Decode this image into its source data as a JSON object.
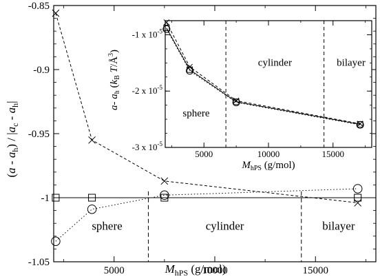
{
  "chart_data": [
    {
      "type": "line",
      "panel": "main",
      "xlabel": {
        "base": "M",
        "sub": "hPS",
        "unit": " (g/mol)"
      },
      "ylabel": "(a - a_h) / |a_c - a_h|",
      "xlim": [
        2000,
        18000
      ],
      "ylim": [
        -1.05,
        -0.85
      ],
      "xticks": [
        5000,
        10000,
        15000
      ],
      "xtick_labels": [
        "5000",
        "10000",
        "15000"
      ],
      "yticks": [
        -1.05,
        -1.0,
        -0.95,
        -0.9,
        -0.85
      ],
      "ytick_labels": [
        "-1.05",
        "-1",
        "-0.95",
        "-0.9",
        "-0.85"
      ],
      "grid": false,
      "reference_line_y": -1.0,
      "phase_boundaries_x": [
        6700,
        14300
      ],
      "region_labels": [
        "sphere",
        "cylinder",
        "bilayer"
      ],
      "series": [
        {
          "marker": "x",
          "line": "dashed",
          "x": [
            2100,
            3900,
            7500,
            17100
          ],
          "y": [
            -0.856,
            -0.955,
            -0.987,
            -1.004
          ]
        },
        {
          "marker": "square",
          "line": "solid",
          "x": [
            2100,
            3900,
            7500,
            17100
          ],
          "y": [
            -1.0,
            -1.0,
            -1.0,
            -1.0
          ]
        },
        {
          "marker": "circle",
          "line": "dotted",
          "x": [
            2100,
            3900,
            7500,
            17100
          ],
          "y": [
            -1.034,
            -1.009,
            -0.998,
            -0.993
          ]
        }
      ]
    },
    {
      "type": "line",
      "panel": "inset",
      "xlabel": {
        "base": "M",
        "sub": "hPS",
        "unit": " (g/mol)"
      },
      "ylabel": "a- a_h (k_B T/Å^3)",
      "xlim": [
        2000,
        18000
      ],
      "ylim": [
        -3e-05,
        -7.5e-06
      ],
      "xticks": [
        5000,
        10000,
        15000
      ],
      "xtick_labels": [
        "5000",
        "10000",
        "15000"
      ],
      "yticks": [
        -1e-05,
        -2e-05,
        -3e-05
      ],
      "ytick_labels": [
        {
          "mant": "-1 x 10",
          "exp": "-5"
        },
        {
          "mant": "-2 x 10",
          "exp": "-5"
        },
        {
          "mant": "-3 x 10",
          "exp": "-5"
        }
      ],
      "grid": false,
      "phase_boundaries_x": [
        6700,
        14300
      ],
      "region_labels": [
        "sphere",
        "cylinder",
        "bilayer"
      ],
      "series": [
        {
          "marker": "x",
          "line": "dashed",
          "x": [
            2100,
            3900,
            7500,
            17100
          ],
          "y": [
            -7.8e-06,
            -1.57e-05,
            -2.17e-05,
            -2.58e-05
          ]
        },
        {
          "marker": "square",
          "line": "solid",
          "x": [
            2100,
            3900,
            7500,
            17100
          ],
          "y": [
            -8.8e-06,
            -1.62e-05,
            -2.19e-05,
            -2.59e-05
          ]
        },
        {
          "marker": "circle",
          "line": "dotted",
          "x": [
            2100,
            3900,
            7500,
            17100
          ],
          "y": [
            -9e-06,
            -1.64e-05,
            -2.2e-05,
            -2.6e-05
          ]
        }
      ]
    }
  ]
}
